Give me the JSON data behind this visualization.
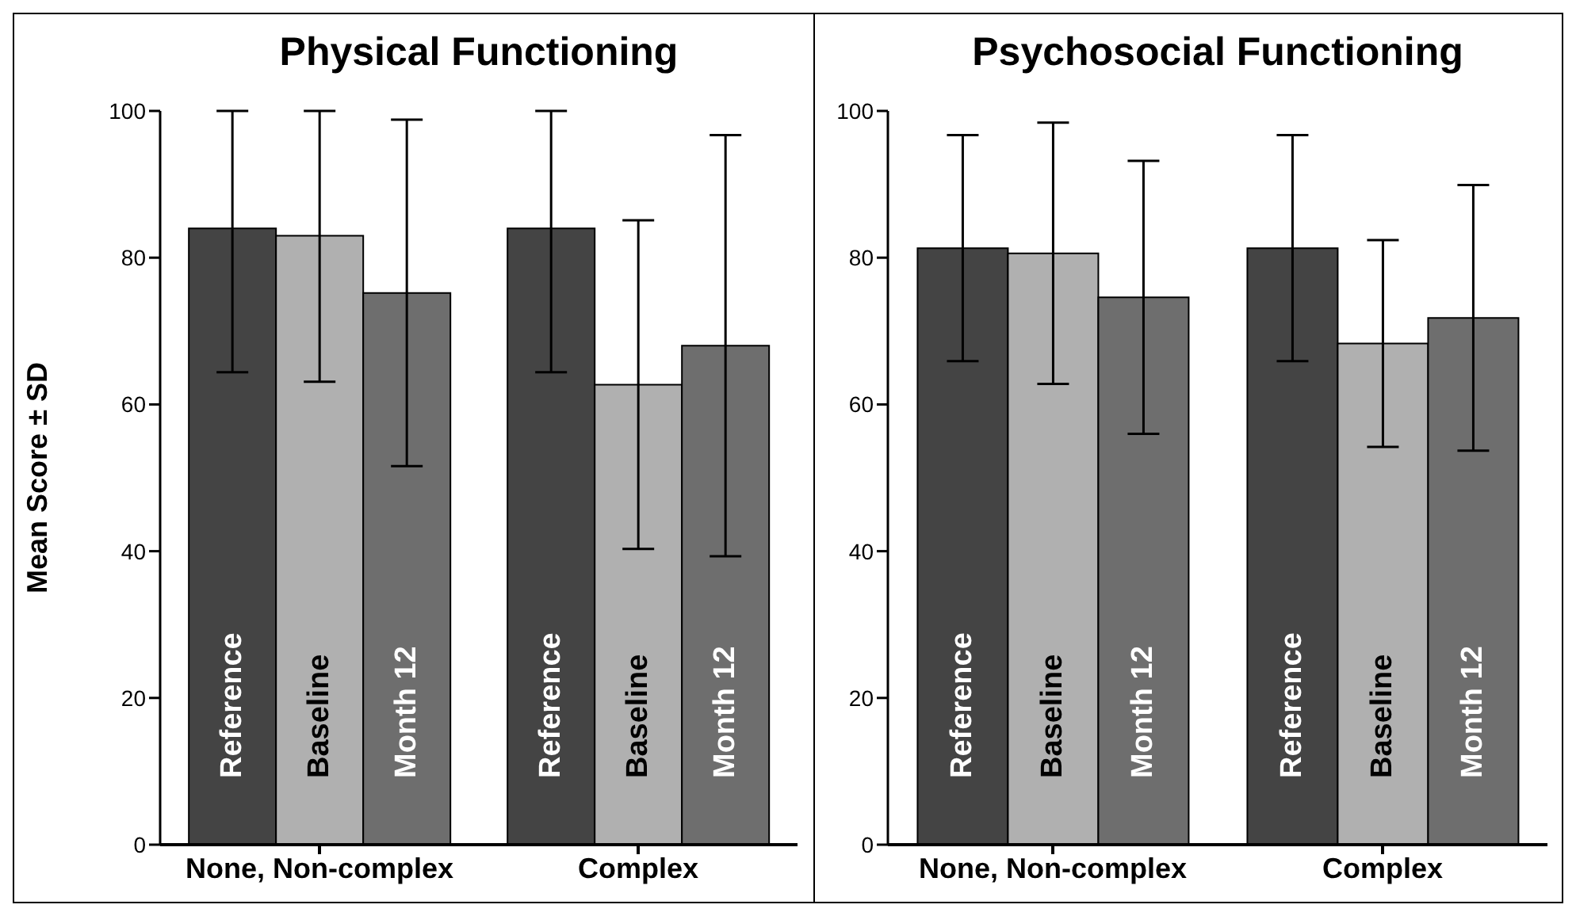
{
  "chart_data": [
    {
      "type": "bar",
      "title": "Physical Functioning",
      "ylabel": "Mean Score ± SD",
      "categories": [
        "None, Non-complex",
        "Complex"
      ],
      "ylim": [
        0,
        100
      ],
      "yticks": [
        0,
        20,
        40,
        60,
        80,
        100
      ],
      "grid": false,
      "legend": false,
      "series": [
        {
          "name": "Reference",
          "color": "#444444",
          "values": [
            84,
            84
          ],
          "errors": [
            [
              64.4,
              100
            ],
            [
              64.4,
              100
            ]
          ]
        },
        {
          "name": "Baseline",
          "color": "#b0b0b0",
          "values": [
            83,
            62.7
          ],
          "errors": [
            [
              63.1,
              100
            ],
            22.4
          ]
        },
        {
          "name": "Month 12",
          "color": "#6e6e6e",
          "values": [
            75.2,
            68
          ],
          "errors": [
            23.6,
            28.7
          ]
        }
      ]
    },
    {
      "type": "bar",
      "title": "Psychosocial Functioning",
      "categories": [
        "None, Non-complex",
        "Complex"
      ],
      "ylim": [
        0,
        100
      ],
      "yticks": [
        0,
        20,
        40,
        60,
        80,
        100
      ],
      "grid": false,
      "legend": false,
      "series": [
        {
          "name": "Reference",
          "color": "#444444",
          "values": [
            81.3,
            81.3
          ],
          "errors": [
            15.4,
            15.4
          ]
        },
        {
          "name": "Baseline",
          "color": "#b0b0b0",
          "values": [
            80.6,
            68.3
          ],
          "errors": [
            17.8,
            14.1
          ]
        },
        {
          "name": "Month 12",
          "color": "#6e6e6e",
          "values": [
            74.6,
            71.8
          ],
          "errors": [
            18.6,
            18.1
          ]
        }
      ]
    }
  ]
}
